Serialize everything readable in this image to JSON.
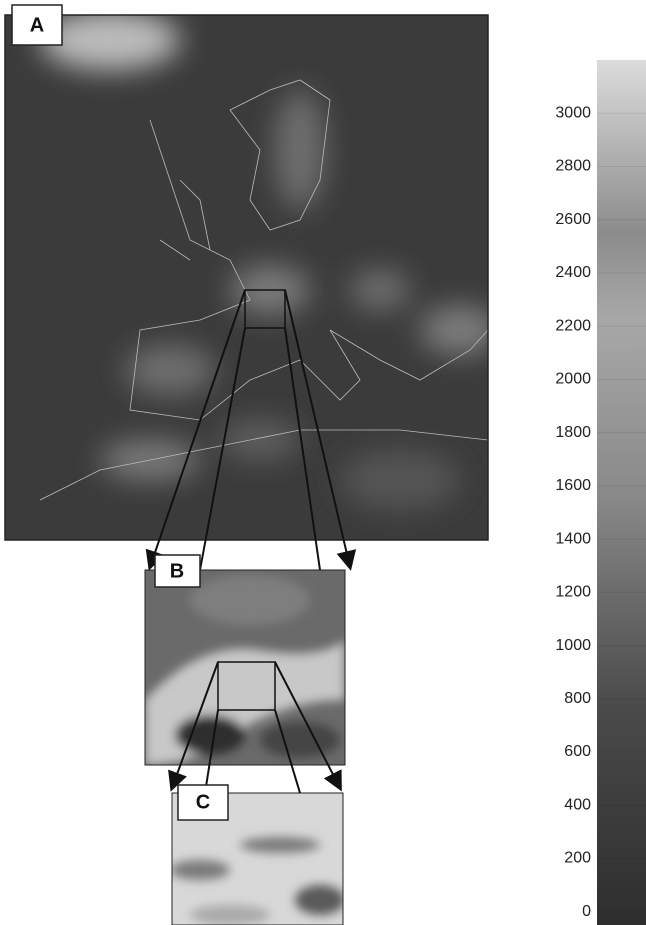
{
  "panels": {
    "a": {
      "label": "A"
    },
    "b": {
      "label": "B"
    },
    "c": {
      "label": "C"
    }
  },
  "colorbar": {
    "lim": [
      -50,
      3200
    ],
    "ticks": [
      0,
      200,
      400,
      600,
      800,
      1000,
      1200,
      1400,
      1600,
      1800,
      2000,
      2200,
      2400,
      2600,
      2800,
      3000
    ]
  }
}
